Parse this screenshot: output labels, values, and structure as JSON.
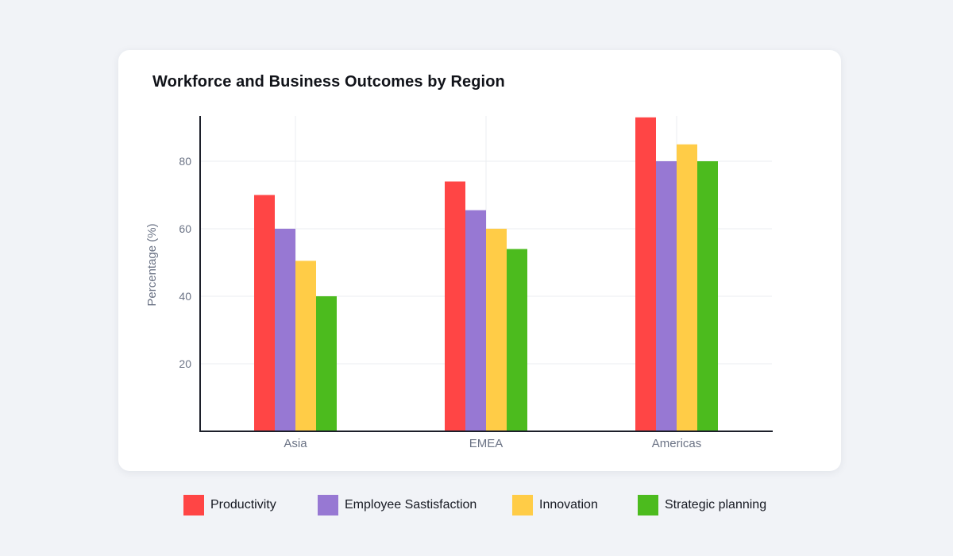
{
  "chart_data": {
    "type": "bar",
    "title": "Workforce and Business Outcomes by Region",
    "xlabel": "",
    "ylabel": "Percentage (%)",
    "categories": [
      "Asia",
      "EMEA",
      "Americas"
    ],
    "yticks": [
      "20",
      "40",
      "60",
      "80"
    ],
    "ylim": [
      0,
      93
    ],
    "series": [
      {
        "name": "Productivity",
        "color": "#ff4545",
        "values": [
          70,
          74,
          93
        ]
      },
      {
        "name": "Employee Sastisfaction",
        "color": "#9778d3",
        "values": [
          60,
          65.5,
          80
        ]
      },
      {
        "name": "Innovation",
        "color": "#ffcc47",
        "values": [
          50.5,
          60,
          85
        ]
      },
      {
        "name": "Strategic planning",
        "color": "#4cbb1e",
        "values": [
          40,
          54,
          80
        ]
      }
    ],
    "grid": true,
    "legend_position": "bottom"
  }
}
